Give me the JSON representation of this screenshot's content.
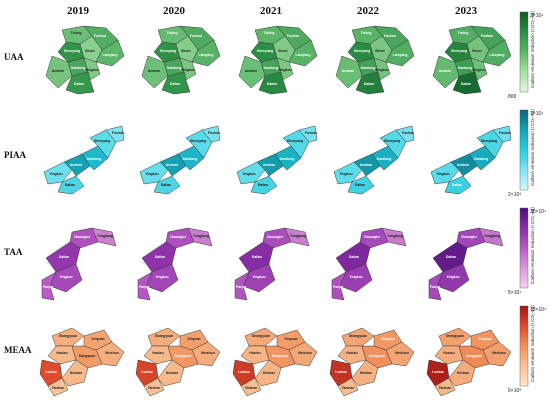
{
  "years": [
    "2019",
    "2020",
    "2021",
    "2022",
    "2023"
  ],
  "unit_label": "Carbon emission reduction (t CO₂-eq)",
  "rows": [
    {
      "label": "UAA",
      "cb_top": "2×10⁴",
      "cb_bottom": "800",
      "colors": [
        "#e4f5e2",
        "#a9dfa4",
        "#5cb66a",
        "#2c8f46",
        "#0d5a27"
      ],
      "regions": [
        "Tieling",
        "Fushun",
        "Shenyang",
        "Benxi",
        "Liaoyang",
        "Anshan",
        "Dandong",
        "Yingkou",
        "Dalian"
      ],
      "cities": [
        "Tieling",
        "Fushun",
        "Shenyang",
        "Benxi",
        "Liaoyang",
        "Anshan",
        "Dandong",
        "Yingkou",
        "Dalian"
      ],
      "levels": [
        [
          0.45,
          0.55,
          0.72,
          0.35,
          0.5,
          0.42,
          0.6,
          0.38,
          0.7
        ],
        [
          0.47,
          0.57,
          0.73,
          0.36,
          0.52,
          0.44,
          0.6,
          0.4,
          0.72
        ],
        [
          0.5,
          0.58,
          0.75,
          0.38,
          0.52,
          0.45,
          0.62,
          0.4,
          0.78
        ],
        [
          0.52,
          0.6,
          0.77,
          0.4,
          0.55,
          0.46,
          0.64,
          0.42,
          0.82
        ],
        [
          0.55,
          0.62,
          0.8,
          0.42,
          0.56,
          0.48,
          0.66,
          0.44,
          0.92
        ]
      ]
    },
    {
      "label": "PIAA",
      "cb_top": "1×10⁴",
      "cb_bottom": "2×10³",
      "colors": [
        "#d9f6fa",
        "#7fe4ef",
        "#28cde0",
        "#14a3b5",
        "#0a6778"
      ],
      "regions": [
        "Yingkou",
        "Anshan",
        "Dandong",
        "Dalian",
        "Shenyang",
        "Fushun"
      ],
      "cities": [
        "Yingkou",
        "Anshan",
        "Dandong",
        "Dalian",
        "Shenyang",
        "Fushun"
      ],
      "levels": [
        [
          0.3,
          0.75,
          0.62,
          0.4,
          0.35,
          0.25
        ],
        [
          0.32,
          0.76,
          0.64,
          0.4,
          0.36,
          0.26
        ],
        [
          0.34,
          0.78,
          0.66,
          0.42,
          0.37,
          0.28
        ],
        [
          0.35,
          0.8,
          0.68,
          0.44,
          0.38,
          0.28
        ],
        [
          0.36,
          0.84,
          0.7,
          0.46,
          0.4,
          0.3
        ]
      ]
    },
    {
      "label": "TAA",
      "cb_top": "30×10⁴",
      "cb_bottom": "5×10⁴",
      "colors": [
        "#f2d4ef",
        "#d99bd6",
        "#b85bc4",
        "#8a2ea6",
        "#4a0f78"
      ],
      "regions": [
        "Zhuanghe",
        "Tongjiang",
        "Dalian",
        "Yingkou",
        "Panjin"
      ],
      "cities": [
        "Zhuanghe",
        "Tongjiang",
        "Dalian",
        "Yingkou",
        "Panjin"
      ],
      "levels": [
        [
          0.55,
          0.35,
          0.7,
          0.6,
          0.5
        ],
        [
          0.56,
          0.36,
          0.72,
          0.62,
          0.52
        ],
        [
          0.58,
          0.36,
          0.76,
          0.64,
          0.54
        ],
        [
          0.6,
          0.38,
          0.8,
          0.66,
          0.56
        ],
        [
          0.62,
          0.4,
          0.9,
          0.7,
          0.6
        ]
      ]
    },
    {
      "label": "MEAA",
      "cb_top": "13×10⁴",
      "cb_bottom": "6×10³",
      "colors": [
        "#fde6cf",
        "#f9c296",
        "#f1905b",
        "#dd4b2c",
        "#a01416"
      ],
      "regions": [
        "Shangyuan",
        "Xinyuan",
        "Huaisu",
        "Luotuo",
        "Taishan",
        "Meizhou",
        "Dongyuan",
        "Heshan"
      ],
      "cities": [
        "Shangyuan",
        "Xinyuan",
        "Huaisu",
        "Luotuo",
        "Taishan",
        "Meizhou",
        "Dongyuan",
        "Heshan"
      ],
      "levels": [
        [
          0.35,
          0.4,
          0.3,
          0.75,
          0.25,
          0.35,
          0.45,
          0.3
        ],
        [
          0.36,
          0.42,
          0.3,
          0.78,
          0.26,
          0.36,
          0.46,
          0.3
        ],
        [
          0.38,
          0.44,
          0.32,
          0.82,
          0.27,
          0.38,
          0.48,
          0.32
        ],
        [
          0.4,
          0.46,
          0.34,
          0.86,
          0.28,
          0.4,
          0.5,
          0.34
        ],
        [
          0.42,
          0.48,
          0.36,
          0.95,
          0.3,
          0.42,
          0.52,
          0.36
        ]
      ]
    }
  ]
}
